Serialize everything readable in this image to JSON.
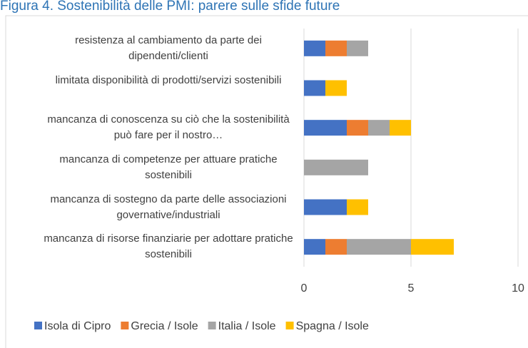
{
  "chart_data": {
    "type": "stacked-bar-horizontal",
    "title": "Figura 4. Sostenibilità delle PMI: parere sulle sfide future",
    "categories": [
      "resistenza al cambiamento da parte dei dipendenti/clienti",
      "limitata disponibilità di prodotti/servizi sostenibili",
      "mancanza di conoscenza su ciò che la sostenibilità può fare per il nostro…",
      "mancanza di competenze per attuare pratiche sostenibili",
      "mancanza di sostegno da parte delle associazioni governative/industriali",
      "mancanza di risorse finanziarie per adottare pratiche sostenibili"
    ],
    "series": [
      {
        "name": "Isola di Cipro",
        "color": "#4472c4",
        "values": [
          1,
          1,
          2,
          0,
          2,
          1
        ]
      },
      {
        "name": "Grecia / Isole",
        "color": "#ed7d31",
        "values": [
          1,
          0,
          1,
          0,
          0,
          1
        ]
      },
      {
        "name": "Italia / Isole",
        "color": "#a5a5a5",
        "values": [
          1,
          0,
          1,
          3,
          0,
          3
        ]
      },
      {
        "name": "Spagna / Isole",
        "color": "#ffc000",
        "values": [
          0,
          1,
          1,
          0,
          1,
          2
        ]
      }
    ],
    "xlim": [
      0,
      10
    ],
    "xticks": [
      0,
      5,
      10
    ],
    "grid": true,
    "legend": "bottom"
  }
}
